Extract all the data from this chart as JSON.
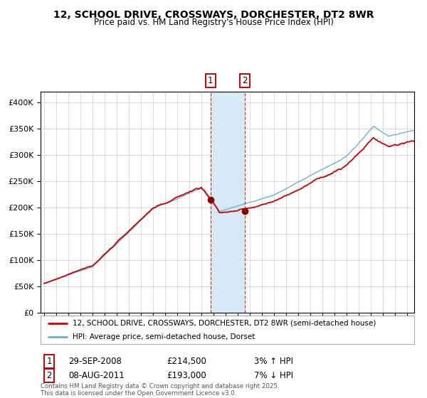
{
  "title": "12, SCHOOL DRIVE, CROSSWAYS, DORCHESTER, DT2 8WR",
  "subtitle": "Price paid vs. HM Land Registry's House Price Index (HPI)",
  "legend_line1": "12, SCHOOL DRIVE, CROSSWAYS, DORCHESTER, DT2 8WR (semi-detached house)",
  "legend_line2": "HPI: Average price, semi-detached house, Dorset",
  "transaction1_date": "29-SEP-2008",
  "transaction1_price": 214500,
  "transaction1_label": "3% ↑ HPI",
  "transaction2_date": "08-AUG-2011",
  "transaction2_price": 193000,
  "transaction2_label": "7% ↓ HPI",
  "copyright": "Contains HM Land Registry data © Crown copyright and database right 2025.\nThis data is licensed under the Open Government Licence v3.0.",
  "hpi_color": "#6baed6",
  "price_color": "#cc0000",
  "marker_color": "#8b0000",
  "vline_color": "#cc0000",
  "shade_color": "#d0e8f5",
  "background_color": "#ffffff",
  "grid_color": "#cccccc",
  "ylim": [
    0,
    420000
  ],
  "yticks": [
    0,
    50000,
    100000,
    150000,
    200000,
    250000,
    300000,
    350000,
    400000
  ],
  "t1_x": 2008.747,
  "t2_x": 2011.581,
  "xlim_left": 1994.7,
  "xlim_right": 2025.6
}
